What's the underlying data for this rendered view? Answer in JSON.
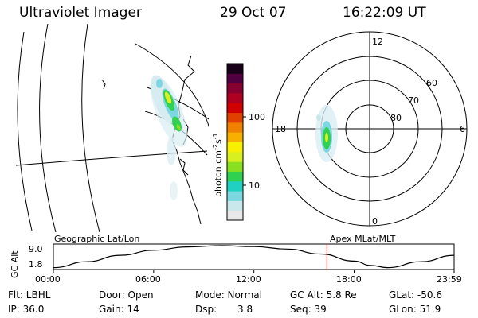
{
  "header": {
    "title": "Ultraviolet Imager",
    "date": "29 Oct 07",
    "time": "16:22:09 UT"
  },
  "colorbar": {
    "label": "photon cm",
    "label_sup1": "-2",
    "label_mid": "s",
    "label_sup2": "-1",
    "ticks": [
      "100",
      "10"
    ],
    "colors": [
      "#e8e8e8",
      "#c8e8ec",
      "#7cd8e0",
      "#20d0c0",
      "#30d050",
      "#88e020",
      "#d8f020",
      "#f8f000",
      "#f8b000",
      "#f08000",
      "#e04000",
      "#d00000",
      "#b00020",
      "#880030",
      "#500040",
      "#180018"
    ]
  },
  "polar": {
    "mlt_labels": [
      "12",
      "18",
      "6",
      "0"
    ],
    "lat_labels": [
      "60",
      "70",
      "80"
    ]
  },
  "timeline": {
    "left_label": "Geographic Lat/Lon",
    "right_label": "Apex MLat/MLT",
    "ylabel": "GC Alt",
    "y_ticks": [
      "9.0",
      "1.8"
    ],
    "x_ticks": [
      "00:00",
      "06:00",
      "12:00",
      "18:00",
      "23:59"
    ]
  },
  "status": {
    "flt": "Flt: LBHL",
    "door": "Door: Open",
    "mode": "Mode: Normal",
    "gcalt": "GC Alt: 5.8 Re",
    "glat": "GLat: -50.6",
    "ip": "IP: 36.0",
    "gain": "Gain: 14",
    "dsp_label": "Dsp:",
    "dsp_val": "3.8",
    "seq": "Seq: 39",
    "glon": "GLon: 51.9"
  },
  "chart_data": [
    {
      "type": "heatmap",
      "title": "Geographic Lat/Lon",
      "zscale": "log",
      "zticks": [
        10,
        100
      ],
      "zlabel": "photon cm-2 s-1"
    },
    {
      "type": "heatmap",
      "title": "Apex MLat/MLT",
      "radial_ticks": [
        60,
        70,
        80
      ],
      "mlt_ticks": [
        0,
        6,
        12,
        18
      ]
    },
    {
      "type": "line",
      "ylabel": "GC Alt",
      "ylim": [
        1.8,
        9.0
      ],
      "x": [
        "00:00",
        "02:00",
        "04:00",
        "06:00",
        "08:00",
        "10:00",
        "12:00",
        "14:00",
        "16:00",
        "18:00",
        "19:00",
        "20:00",
        "22:00",
        "23:59"
      ],
      "values": [
        1.9,
        3.8,
        5.9,
        7.5,
        8.6,
        9.0,
        8.7,
        7.9,
        6.3,
        4.0,
        2.6,
        1.9,
        3.8,
        5.9
      ],
      "current_time": "16:22"
    }
  ]
}
